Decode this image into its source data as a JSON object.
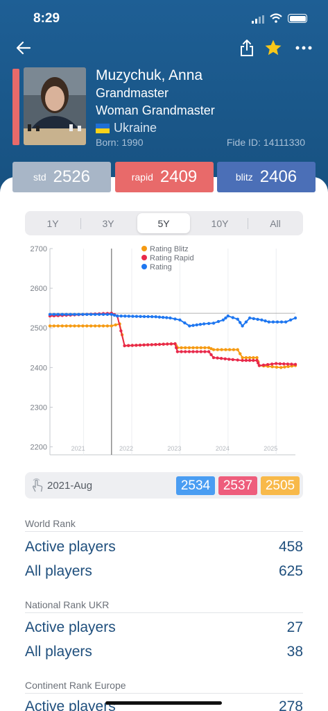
{
  "status_bar": {
    "time": "8:29"
  },
  "player": {
    "name": "Muzychuk, Anna",
    "title1": "Grandmaster",
    "title2": "Woman Grandmaster",
    "country": "Ukraine",
    "born": "Born: 1990",
    "fide_id": "Fide ID: 14111330"
  },
  "ratings": [
    {
      "label": "std",
      "value": "2526"
    },
    {
      "label": "rapid",
      "value": "2409"
    },
    {
      "label": "blitz",
      "value": "2406"
    }
  ],
  "periods": [
    "1Y",
    "3Y",
    "5Y",
    "10Y",
    "All"
  ],
  "active_period": "5Y",
  "cursor": {
    "date": "2021-Aug",
    "rating": "2534",
    "rapid": "2537",
    "blitz": "2505"
  },
  "colors": {
    "rating": "#1f77f0",
    "rapid": "#e8294a",
    "blitz": "#f59a12",
    "header": "#1e5f95",
    "text_blue": "#1f4f7d"
  },
  "sections": [
    {
      "title": "World Rank",
      "rows": [
        {
          "label": "Active players",
          "value": "458"
        },
        {
          "label": "All players",
          "value": "625"
        }
      ]
    },
    {
      "title": "National Rank UKR",
      "rows": [
        {
          "label": "Active players",
          "value": "27"
        },
        {
          "label": "All players",
          "value": "38"
        }
      ]
    },
    {
      "title": "Continent Rank Europe",
      "rows": [
        {
          "label": "Active players",
          "value": "278"
        }
      ]
    }
  ],
  "chart_data": {
    "type": "line",
    "ylim": [
      2180,
      2700
    ],
    "yticks": [
      "2700",
      "2600",
      "2500",
      "2400",
      "2300",
      "2200"
    ],
    "xticks": [
      "2021",
      "2022",
      "2023",
      "2024",
      "2025"
    ],
    "legend": [
      "Rating Blitz",
      "Rating Rapid",
      "Rating"
    ],
    "legend_position": "top",
    "x_range": [
      2020.3,
      2025.4
    ],
    "cursor_x": 2021.58,
    "series": [
      {
        "name": "Rating Blitz",
        "color": "#f59a12",
        "points": [
          [
            2020.3,
            2505
          ],
          [
            2021.58,
            2505
          ],
          [
            2021.75,
            2510
          ],
          [
            2021.85,
            2455
          ],
          [
            2022.9,
            2460
          ],
          [
            2022.95,
            2450
          ],
          [
            2023.6,
            2450
          ],
          [
            2023.7,
            2445
          ],
          [
            2024.2,
            2445
          ],
          [
            2024.3,
            2425
          ],
          [
            2024.6,
            2425
          ],
          [
            2024.65,
            2405
          ],
          [
            2025.1,
            2400
          ],
          [
            2025.4,
            2405
          ]
        ]
      },
      {
        "name": "Rating Rapid",
        "color": "#e8294a",
        "points": [
          [
            2020.3,
            2530
          ],
          [
            2021.58,
            2537
          ],
          [
            2021.7,
            2530
          ],
          [
            2021.85,
            2455
          ],
          [
            2022.9,
            2460
          ],
          [
            2022.95,
            2440
          ],
          [
            2023.6,
            2440
          ],
          [
            2023.7,
            2425
          ],
          [
            2024.1,
            2420
          ],
          [
            2024.3,
            2418
          ],
          [
            2024.6,
            2418
          ],
          [
            2024.65,
            2405
          ],
          [
            2025.0,
            2410
          ],
          [
            2025.4,
            2408
          ]
        ]
      },
      {
        "name": "Rating",
        "color": "#1f77f0",
        "points": [
          [
            2020.3,
            2534
          ],
          [
            2021.58,
            2534
          ],
          [
            2021.7,
            2530
          ],
          [
            2022.5,
            2528
          ],
          [
            2022.8,
            2525
          ],
          [
            2023.0,
            2520
          ],
          [
            2023.2,
            2505
          ],
          [
            2023.5,
            2510
          ],
          [
            2023.7,
            2512
          ],
          [
            2023.9,
            2520
          ],
          [
            2024.0,
            2530
          ],
          [
            2024.2,
            2522
          ],
          [
            2024.3,
            2505
          ],
          [
            2024.45,
            2525
          ],
          [
            2024.7,
            2520
          ],
          [
            2024.85,
            2515
          ],
          [
            2025.2,
            2515
          ],
          [
            2025.4,
            2525
          ]
        ]
      }
    ]
  }
}
